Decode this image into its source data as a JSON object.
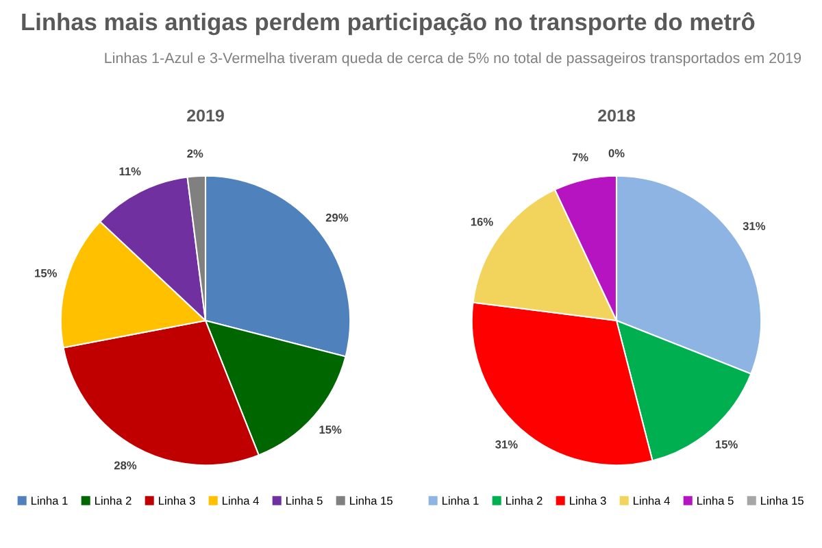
{
  "chart_data": [
    {
      "type": "pie",
      "title": "2019",
      "annotations": [
        "Linhas mais antigas perdem participação no transporte do metrô",
        "Linhas 1-Azul e 3-Vermelha tiveram queda de cerca de 5% no total de passageiros transportados em 2019"
      ],
      "categories": [
        "Linha 1",
        "Linha 2",
        "Linha 3",
        "Linha 4",
        "Linha 5",
        "Linha 15"
      ],
      "values": [
        29,
        15,
        28,
        15,
        11,
        2
      ],
      "colors": [
        "#4f81bd",
        "#006600",
        "#c00000",
        "#ffc000",
        "#7030a0",
        "#808080"
      ],
      "value_labels": [
        "29%",
        "15%",
        "28%",
        "15%",
        "11%",
        "2%"
      ],
      "legend": "bottom"
    },
    {
      "type": "pie",
      "title": "2018",
      "categories": [
        "Linha 1",
        "Linha 2",
        "Linha 3",
        "Linha 4",
        "Linha 5",
        "Linha 15"
      ],
      "values": [
        31,
        15,
        31,
        16,
        7,
        0
      ],
      "colors": [
        "#8eb4e3",
        "#00b050",
        "#ff0000",
        "#f2d45c",
        "#b514c0",
        "#a6a6a6"
      ],
      "value_labels": [
        "31%",
        "15%",
        "31%",
        "16%",
        "7%",
        "0%"
      ],
      "legend": "bottom"
    }
  ]
}
